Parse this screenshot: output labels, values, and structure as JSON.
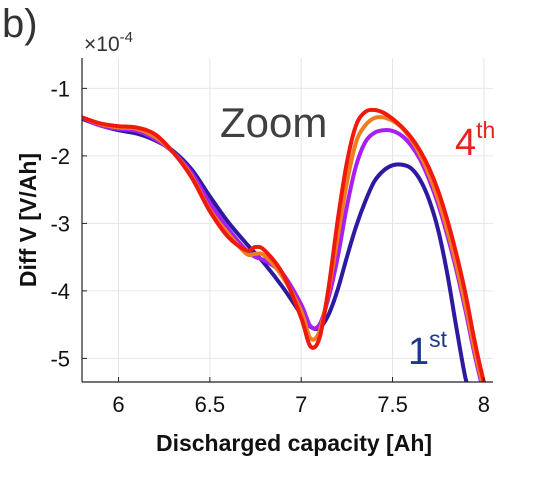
{
  "panel_label": "b)",
  "annotation_zoom": "Zoom",
  "label_first": {
    "base": "1",
    "sup": "st",
    "color": "#1d3a8a"
  },
  "label_fourth": {
    "base": "4",
    "sup": "th",
    "color": "#e8231d"
  },
  "chart_data": {
    "type": "line",
    "title": "",
    "xlabel": "Discharged capacity [Ah]",
    "ylabel": "Diff V [V/Ah]",
    "y_exponent": "×10",
    "y_exponent_power": "-4",
    "xlim": [
      5.8,
      8.05
    ],
    "ylim": [
      -5.35,
      -0.55
    ],
    "xticks": [
      6,
      6.5,
      7,
      7.5,
      8
    ],
    "xtick_labels": [
      "6",
      "6.5",
      "7",
      "7.5",
      "8"
    ],
    "yticks": [
      -1,
      -2,
      -3,
      -4,
      -5
    ],
    "ytick_labels": [
      "-1",
      "-2",
      "-3",
      "-4",
      "-5"
    ],
    "grid": true,
    "series": [
      {
        "color": "#2c1aa0",
        "x": [
          5.8,
          5.9,
          6.0,
          6.1,
          6.2,
          6.3,
          6.4,
          6.5,
          6.6,
          6.7,
          6.8,
          6.9,
          7.0,
          7.05,
          7.1,
          7.15,
          7.2,
          7.25,
          7.3,
          7.35,
          7.4,
          7.45,
          7.5,
          7.55,
          7.6,
          7.65,
          7.7,
          7.75,
          7.8,
          7.85,
          7.9,
          7.93
        ],
        "y": [
          -1.45,
          -1.55,
          -1.62,
          -1.67,
          -1.77,
          -1.93,
          -2.2,
          -2.6,
          -2.98,
          -3.3,
          -3.6,
          -3.95,
          -4.35,
          -4.53,
          -4.55,
          -4.35,
          -3.98,
          -3.5,
          -3.05,
          -2.68,
          -2.38,
          -2.22,
          -2.14,
          -2.13,
          -2.18,
          -2.35,
          -2.65,
          -3.1,
          -3.75,
          -4.55,
          -5.3,
          -5.5
        ]
      },
      {
        "color": "#a81ff2",
        "x": [
          5.8,
          5.9,
          6.0,
          6.1,
          6.2,
          6.3,
          6.4,
          6.5,
          6.6,
          6.7,
          6.75,
          6.8,
          6.9,
          7.0,
          7.05,
          7.1,
          7.15,
          7.2,
          7.25,
          7.3,
          7.35,
          7.4,
          7.45,
          7.5,
          7.55,
          7.6,
          7.65,
          7.7,
          7.75,
          7.8,
          7.85,
          7.9,
          7.95,
          8.0,
          8.02
        ],
        "y": [
          -1.43,
          -1.55,
          -1.6,
          -1.63,
          -1.75,
          -1.95,
          -2.25,
          -2.7,
          -3.08,
          -3.4,
          -3.5,
          -3.55,
          -3.75,
          -4.2,
          -4.52,
          -4.5,
          -4.1,
          -3.5,
          -2.75,
          -2.15,
          -1.8,
          -1.66,
          -1.62,
          -1.63,
          -1.7,
          -1.84,
          -2.05,
          -2.35,
          -2.72,
          -3.18,
          -3.7,
          -4.3,
          -4.95,
          -5.5,
          -5.6
        ]
      },
      {
        "color": "#f07c20",
        "x": [
          5.8,
          5.9,
          6.0,
          6.1,
          6.2,
          6.3,
          6.4,
          6.5,
          6.6,
          6.7,
          6.75,
          6.8,
          6.9,
          7.0,
          7.05,
          7.1,
          7.15,
          7.2,
          7.25,
          7.3,
          7.35,
          7.4,
          7.45,
          7.5,
          7.55,
          7.6,
          7.65,
          7.7,
          7.75,
          7.8,
          7.85,
          7.9,
          7.95,
          8.0,
          8.02
        ],
        "y": [
          -1.43,
          -1.53,
          -1.58,
          -1.6,
          -1.72,
          -1.95,
          -2.3,
          -2.8,
          -3.15,
          -3.45,
          -3.45,
          -3.48,
          -3.8,
          -4.3,
          -4.7,
          -4.6,
          -4.0,
          -3.2,
          -2.4,
          -1.8,
          -1.55,
          -1.44,
          -1.43,
          -1.48,
          -1.58,
          -1.75,
          -1.98,
          -2.28,
          -2.65,
          -3.1,
          -3.62,
          -4.22,
          -4.88,
          -5.45,
          -5.6
        ]
      },
      {
        "color": "#f0190c",
        "x": [
          5.8,
          5.9,
          6.0,
          6.1,
          6.2,
          6.3,
          6.4,
          6.5,
          6.6,
          6.7,
          6.75,
          6.8,
          6.9,
          7.0,
          7.05,
          7.1,
          7.15,
          7.2,
          7.25,
          7.3,
          7.35,
          7.4,
          7.45,
          7.5,
          7.55,
          7.6,
          7.65,
          7.7,
          7.75,
          7.8,
          7.85,
          7.9,
          7.95,
          8.0,
          8.03
        ],
        "y": [
          -1.43,
          -1.52,
          -1.56,
          -1.58,
          -1.68,
          -1.95,
          -2.32,
          -2.82,
          -3.2,
          -3.4,
          -3.35,
          -3.4,
          -3.75,
          -4.4,
          -4.82,
          -4.7,
          -3.95,
          -2.95,
          -2.1,
          -1.55,
          -1.35,
          -1.32,
          -1.36,
          -1.45,
          -1.57,
          -1.72,
          -1.92,
          -2.18,
          -2.52,
          -2.95,
          -3.46,
          -4.05,
          -4.75,
          -5.35,
          -5.6
        ]
      }
    ]
  }
}
